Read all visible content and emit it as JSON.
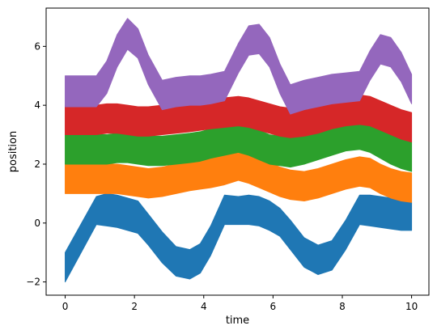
{
  "chart_data": {
    "type": "area",
    "title": "",
    "xlabel": "time",
    "ylabel": "position",
    "xlim": [
      -0.55,
      10.5
    ],
    "ylim": [
      -2.45,
      7.3
    ],
    "x_ticks": [
      0,
      2,
      4,
      6,
      8,
      10
    ],
    "y_ticks": [
      -2,
      0,
      2,
      4,
      6
    ],
    "x_tick_labels": [
      "0",
      "2",
      "4",
      "6",
      "8",
      "10"
    ],
    "y_tick_labels": [
      "−2",
      "0",
      "2",
      "4",
      "6"
    ],
    "grid": false,
    "legend": "none",
    "x": [
      0,
      0.9,
      1.2,
      1.5,
      1.8,
      2.1,
      2.4,
      2.8,
      3.2,
      3.6,
      3.9,
      4.2,
      4.6,
      5.0,
      5.3,
      5.6,
      5.9,
      6.2,
      6.5,
      6.9,
      7.3,
      7.7,
      8.1,
      8.5,
      8.8,
      9.1,
      9.4,
      9.7,
      10
    ],
    "series": [
      {
        "color": "#1f77b4",
        "lower": [
          -2.0,
          -0.05,
          -0.1,
          -0.15,
          -0.25,
          -0.35,
          -0.75,
          -1.35,
          -1.8,
          -1.9,
          -1.7,
          -1.1,
          -0.05,
          -0.05,
          -0.05,
          -0.1,
          -0.25,
          -0.45,
          -0.9,
          -1.5,
          -1.75,
          -1.6,
          -0.9,
          -0.05,
          -0.1,
          -0.15,
          -0.2,
          -0.25,
          -0.25
        ],
        "upper": [
          -1.0,
          0.9,
          1.0,
          0.95,
          0.85,
          0.75,
          0.3,
          -0.3,
          -0.8,
          -0.9,
          -0.7,
          -0.1,
          0.95,
          0.9,
          0.95,
          0.9,
          0.75,
          0.5,
          0.1,
          -0.5,
          -0.75,
          -0.6,
          0.1,
          0.95,
          0.95,
          0.9,
          0.85,
          0.8,
          0.7
        ]
      },
      {
        "color": "#ff7f0e",
        "lower": [
          1.0,
          1.0,
          1.0,
          1.0,
          0.95,
          0.9,
          0.85,
          0.9,
          1.0,
          1.1,
          1.15,
          1.2,
          1.3,
          1.45,
          1.35,
          1.2,
          1.05,
          0.9,
          0.8,
          0.75,
          0.85,
          1.0,
          1.15,
          1.25,
          1.2,
          1.0,
          0.85,
          0.75,
          0.7
        ]
      },
      {
        "color": "#2ca02c",
        "lower": [
          2.0,
          2.0,
          2.0,
          2.05,
          2.05,
          2.0,
          1.95,
          1.95,
          2.0,
          2.05,
          2.1,
          2.2,
          2.3,
          2.4,
          2.3,
          2.15,
          2.0,
          1.95,
          1.9,
          2.0,
          2.15,
          2.3,
          2.45,
          2.5,
          2.4,
          2.2,
          2.0,
          1.85,
          1.75
        ]
      },
      {
        "color": "#d62728",
        "lower": [
          3.0,
          3.0,
          3.05,
          3.05,
          3.0,
          2.95,
          2.95,
          3.0,
          3.05,
          3.1,
          3.15,
          3.2,
          3.25,
          3.3,
          3.25,
          3.15,
          3.05,
          2.95,
          2.9,
          2.95,
          3.05,
          3.2,
          3.3,
          3.35,
          3.3,
          3.15,
          3.0,
          2.85,
          2.75
        ]
      },
      {
        "color": "#9467bd",
        "lower": [
          3.95,
          3.95,
          4.4,
          5.3,
          5.9,
          5.6,
          4.7,
          3.85,
          3.95,
          4.0,
          4.0,
          4.05,
          4.15,
          5.1,
          5.7,
          5.75,
          5.3,
          4.4,
          3.7,
          3.85,
          3.95,
          4.05,
          4.1,
          4.15,
          4.85,
          5.4,
          5.3,
          4.8,
          4.05
        ],
        "upper": [
          5.0,
          5.0,
          5.5,
          6.4,
          6.95,
          6.6,
          5.7,
          4.85,
          4.95,
          5.0,
          5.0,
          5.05,
          5.15,
          6.1,
          6.7,
          6.75,
          6.3,
          5.4,
          4.7,
          4.85,
          4.95,
          5.05,
          5.1,
          5.15,
          5.85,
          6.4,
          6.3,
          5.8,
          5.05
        ]
      }
    ]
  }
}
